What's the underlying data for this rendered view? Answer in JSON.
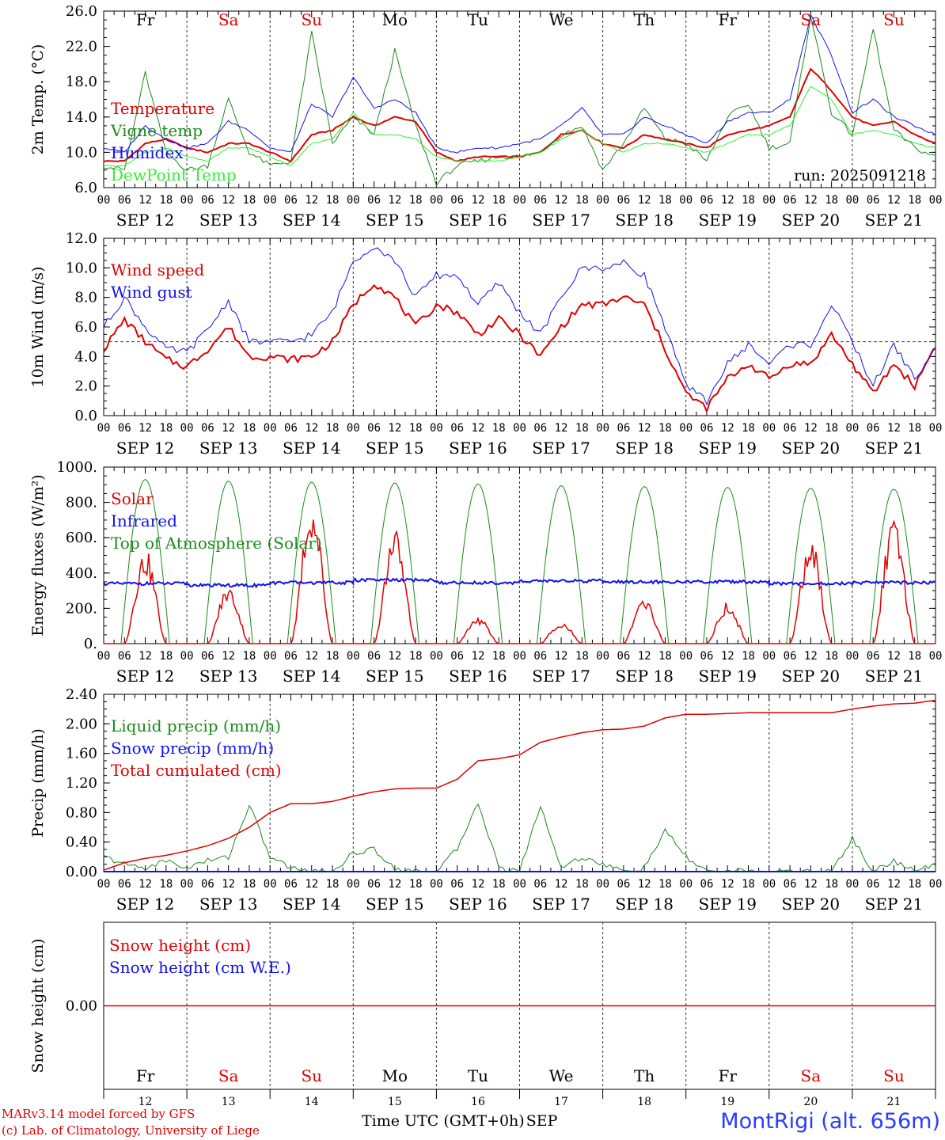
{
  "figure": {
    "run_label": "run: 2025091218",
    "footer_line1": "MARv3.14 model forced by GFS",
    "footer_line2": "(c) Lab. of Climatology, University of Liege",
    "xaxis_title": "Time UTC (GMT+0h)",
    "xaxis_month": "SEP",
    "station": "MontRigi (alt. 656m)",
    "colors": {
      "red": "#e00000",
      "green": "#1a8a1a",
      "blue": "#1010ee",
      "lightgreen": "#33ee33",
      "weekend": "#e00000",
      "weekday": "#000000"
    }
  },
  "chart_data": [
    {
      "type": "line",
      "ylabel": "2m Temp. (°C)",
      "ylim": [
        6,
        26
      ],
      "yticks": [
        "6.0",
        "10.0",
        "14.0",
        "18.0",
        "22.0",
        "26.0"
      ],
      "ytick_values": [
        6,
        10,
        14,
        18,
        22,
        26
      ],
      "weekdays": [
        "Fr",
        "Sa",
        "Su",
        "Mo",
        "Tu",
        "We",
        "Th",
        "Fr",
        "Sa",
        "Su"
      ],
      "weekend": [
        false,
        true,
        true,
        false,
        false,
        false,
        false,
        false,
        true,
        true
      ],
      "x_hours": [
        0,
        6,
        12,
        18,
        24,
        30,
        36,
        42,
        48,
        54,
        60,
        66,
        72,
        78,
        84,
        90,
        96,
        102,
        108,
        114,
        120,
        126,
        132,
        138,
        144,
        150,
        156,
        162,
        168,
        174,
        180,
        186,
        192,
        198,
        204,
        210,
        216,
        222,
        228,
        234,
        240
      ],
      "series": [
        {
          "name": "Temperature",
          "color": "red",
          "values": [
            9.0,
            9.0,
            11.0,
            11.5,
            10.5,
            10.0,
            11.0,
            11.0,
            10.0,
            9.0,
            12.0,
            12.5,
            14.0,
            13.0,
            14.0,
            13.5,
            10.0,
            9.0,
            9.5,
            9.5,
            9.5,
            10.0,
            12.0,
            12.5,
            11.0,
            10.5,
            12.0,
            11.5,
            11.0,
            10.5,
            12.0,
            12.5,
            13.0,
            14.0,
            19.5,
            17.0,
            14.0,
            13.0,
            13.5,
            12.0,
            11.0
          ]
        },
        {
          "name": "Vigne temp",
          "color": "green",
          "values": [
            8.5,
            8.0,
            19.0,
            10.0,
            8.0,
            8.5,
            16.0,
            10.0,
            8.5,
            9.0,
            23.5,
            11.0,
            14.0,
            12.0,
            21.5,
            13.0,
            6.5,
            8.5,
            9.0,
            9.5,
            9.5,
            10.0,
            12.0,
            13.0,
            8.0,
            11.0,
            15.0,
            11.5,
            11.0,
            9.0,
            14.0,
            15.5,
            10.5,
            11.0,
            25.5,
            14.5,
            12.0,
            24.0,
            12.5,
            10.5,
            9.5
          ]
        },
        {
          "name": "Humidex",
          "color": "blue",
          "values": [
            10.5,
            10.0,
            13.0,
            11.5,
            10.5,
            11.0,
            13.5,
            12.5,
            10.5,
            10.0,
            15.5,
            14.0,
            18.5,
            15.0,
            16.0,
            14.5,
            10.5,
            10.0,
            10.5,
            10.5,
            11.0,
            11.5,
            13.0,
            15.0,
            12.0,
            12.0,
            14.0,
            13.0,
            12.0,
            11.0,
            13.5,
            14.5,
            14.5,
            16.0,
            25.5,
            21.0,
            14.5,
            16.0,
            14.0,
            13.0,
            12.0
          ]
        },
        {
          "name": "DewPoint Temp",
          "color": "lightgreen",
          "values": [
            8.5,
            8.5,
            10.0,
            10.5,
            9.5,
            9.0,
            10.5,
            10.5,
            9.5,
            8.5,
            11.0,
            11.5,
            14.5,
            12.0,
            12.0,
            11.5,
            9.5,
            9.0,
            9.0,
            9.0,
            9.5,
            10.0,
            11.5,
            12.5,
            11.0,
            10.0,
            11.0,
            11.0,
            10.5,
            10.0,
            11.0,
            12.0,
            12.0,
            13.0,
            17.5,
            16.0,
            12.0,
            12.5,
            12.0,
            11.0,
            10.5
          ]
        }
      ]
    },
    {
      "type": "line",
      "ylabel": "10m Wind (m/s)",
      "ylim": [
        0,
        12
      ],
      "yticks": [
        "0.0",
        "2.0",
        "4.0",
        "6.0",
        "8.0",
        "10.0",
        "12.0"
      ],
      "ytick_values": [
        0,
        2,
        4,
        6,
        8,
        10,
        12
      ],
      "reference_line": 5.0,
      "x_hours": [
        0,
        6,
        12,
        18,
        24,
        30,
        36,
        42,
        48,
        54,
        60,
        66,
        72,
        78,
        84,
        90,
        96,
        102,
        108,
        114,
        120,
        126,
        132,
        138,
        144,
        150,
        156,
        162,
        168,
        174,
        180,
        186,
        192,
        198,
        204,
        210,
        216,
        222,
        228,
        234,
        240
      ],
      "series": [
        {
          "name": "Wind speed",
          "color": "red",
          "values": [
            4.5,
            6.5,
            5.0,
            3.8,
            3.3,
            4.5,
            6.0,
            4.0,
            4.0,
            3.8,
            4.0,
            5.0,
            7.5,
            9.0,
            8.0,
            6.0,
            7.5,
            7.0,
            5.5,
            6.5,
            5.5,
            4.0,
            6.0,
            7.5,
            7.5,
            8.0,
            7.5,
            4.5,
            1.5,
            0.5,
            2.5,
            3.5,
            2.5,
            3.5,
            3.5,
            5.5,
            3.5,
            1.5,
            3.5,
            2.0,
            4.8
          ]
        },
        {
          "name": "Wind gust",
          "color": "blue",
          "values": [
            6.0,
            8.0,
            6.0,
            4.5,
            4.3,
            5.8,
            7.8,
            5.0,
            5.0,
            5.0,
            5.5,
            7.0,
            10.5,
            11.5,
            10.5,
            8.0,
            9.5,
            9.5,
            7.5,
            9.0,
            7.0,
            5.5,
            8.0,
            10.0,
            10.0,
            10.3,
            9.5,
            6.0,
            2.0,
            1.0,
            3.5,
            4.8,
            3.5,
            4.8,
            4.8,
            7.5,
            5.0,
            2.0,
            4.8,
            2.5,
            4.5
          ]
        }
      ]
    },
    {
      "type": "line",
      "ylabel": "Energy fluxes (W/m²)",
      "ylim": [
        0,
        1000
      ],
      "yticks": [
        "0.",
        "200.",
        "400.",
        "600.",
        "800.",
        "1000."
      ],
      "ytick_values": [
        0,
        200,
        400,
        600,
        800,
        1000
      ],
      "solar_peaks": [
        460,
        280,
        700,
        570,
        130,
        110,
        220,
        200,
        510,
        620
      ],
      "toa_peaks": [
        930,
        920,
        915,
        910,
        905,
        895,
        890,
        885,
        880,
        875
      ],
      "infrared_level": [
        340,
        330,
        345,
        360,
        345,
        355,
        350,
        350,
        340,
        345
      ],
      "series": [
        {
          "name": "Solar",
          "color": "red"
        },
        {
          "name": "Infrared",
          "color": "blue"
        },
        {
          "name": "Top of Atmosphere (Solar)",
          "color": "green"
        }
      ]
    },
    {
      "type": "line",
      "ylabel": "Precip (mm/h)",
      "ylim": [
        0,
        2.4
      ],
      "yticks": [
        "0.00",
        "0.40",
        "0.80",
        "1.20",
        "1.60",
        "2.00",
        "2.40"
      ],
      "ytick_values": [
        0,
        0.4,
        0.8,
        1.2,
        1.6,
        2.0,
        2.4
      ],
      "x_hours": [
        0,
        6,
        12,
        18,
        24,
        30,
        36,
        42,
        48,
        54,
        60,
        66,
        72,
        78,
        84,
        90,
        96,
        102,
        108,
        114,
        120,
        126,
        132,
        138,
        144,
        150,
        156,
        162,
        168,
        174,
        180,
        186,
        192,
        198,
        204,
        210,
        216,
        222,
        228,
        234,
        240
      ],
      "series": [
        {
          "name": "Liquid precip (mm/h)",
          "color": "green",
          "values": [
            0.2,
            0.1,
            0.05,
            0.15,
            0.05,
            0.15,
            0.2,
            0.9,
            0.2,
            0.05,
            0.0,
            0.0,
            0.25,
            0.3,
            0.05,
            0.0,
            0.0,
            0.3,
            0.95,
            0.05,
            0.0,
            0.9,
            0.05,
            0.2,
            0.1,
            0.0,
            0.05,
            0.55,
            0.2,
            0.0,
            0.0,
            0.0,
            0.0,
            0.0,
            0.0,
            0.0,
            0.45,
            0.0,
            0.15,
            0.0,
            0.1
          ]
        },
        {
          "name": "Snow precip (mm/h)",
          "color": "blue",
          "values": [
            0,
            0,
            0,
            0,
            0,
            0,
            0,
            0,
            0,
            0,
            0,
            0,
            0,
            0,
            0,
            0,
            0,
            0,
            0,
            0,
            0,
            0,
            0,
            0,
            0,
            0,
            0,
            0,
            0,
            0,
            0,
            0,
            0,
            0,
            0,
            0,
            0,
            0,
            0,
            0,
            0
          ]
        },
        {
          "name": "Total cumulated (cm)",
          "color": "red",
          "values": [
            0.02,
            0.12,
            0.18,
            0.22,
            0.28,
            0.35,
            0.45,
            0.6,
            0.8,
            0.92,
            0.92,
            0.95,
            1.02,
            1.08,
            1.12,
            1.13,
            1.13,
            1.25,
            1.5,
            1.53,
            1.58,
            1.75,
            1.82,
            1.88,
            1.92,
            1.93,
            1.97,
            2.08,
            2.13,
            2.13,
            2.14,
            2.15,
            2.15,
            2.15,
            2.15,
            2.15,
            2.2,
            2.24,
            2.27,
            2.28,
            2.32
          ]
        }
      ]
    },
    {
      "type": "line",
      "ylabel": "Snow height (cm)",
      "ylim": [
        -1,
        1
      ],
      "yticks": [
        "0.00"
      ],
      "ytick_values": [
        0
      ],
      "series": [
        {
          "name": "Snow height (cm)",
          "color": "red",
          "values": [
            0,
            0
          ]
        },
        {
          "name": "Snow height (cm W.E.)",
          "color": "blue",
          "values": [
            0,
            0
          ]
        }
      ],
      "day_numbers": [
        "12",
        "13",
        "14",
        "15",
        "16",
        "17",
        "18",
        "19",
        "20",
        "21"
      ]
    }
  ],
  "xaxis": {
    "hour_labels": [
      "00",
      "06",
      "12",
      "18"
    ],
    "end_label": "00",
    "date_labels": [
      "SEP 12",
      "SEP 13",
      "SEP 14",
      "SEP 15",
      "SEP 16",
      "SEP 17",
      "SEP 18",
      "SEP 19",
      "SEP 20",
      "SEP 21"
    ]
  }
}
